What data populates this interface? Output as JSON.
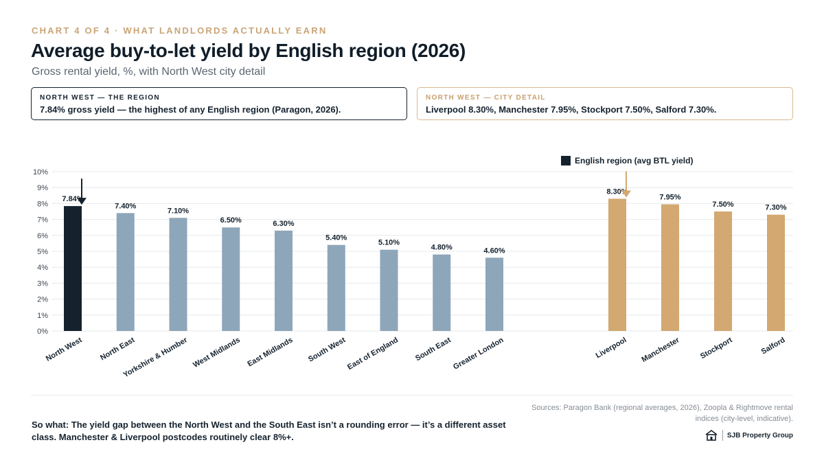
{
  "header": {
    "kicker": "CHART 4 OF 4 · WHAT LANDLORDS ACTUALLY EARN",
    "title": "Average buy-to-let yield by English region (2026)",
    "subtitle": "Gross rental yield, %, with North West city detail"
  },
  "cards": {
    "region": {
      "label": "NORTH WEST — THE REGION",
      "text": "7.84% gross yield — the highest of any English region (Paragon, 2026)."
    },
    "city": {
      "label": "NORTH WEST — CITY DETAIL",
      "text": "Liverpool 8.30%, Manchester 7.95%, Stockport 7.50%, Salford 7.30%."
    }
  },
  "legend": {
    "label": "English region (avg BTL yield)"
  },
  "colors": {
    "highlight": "#15222e",
    "region": "#8ea6ba",
    "city": "#d3a871",
    "grid": "#e6e8eb",
    "axis_text": "#3d4650"
  },
  "chart_data": {
    "type": "bar",
    "y_unit": "%",
    "ylim": [
      0,
      10
    ],
    "yticks": [
      "0%",
      "1%",
      "2%",
      "3%",
      "4%",
      "5%",
      "6%",
      "7%",
      "8%",
      "9%",
      "10%"
    ],
    "grid": true,
    "legend_position": "top-right",
    "categories": [
      "North West",
      "North East",
      "Yorkshire & Humber",
      "West Midlands",
      "East Midlands",
      "South West",
      "East of England",
      "South East",
      "Greater London",
      "Liverpool",
      "Manchester",
      "Stockport",
      "Salford"
    ],
    "values": [
      7.84,
      7.4,
      7.1,
      6.5,
      6.3,
      5.4,
      5.1,
      4.8,
      4.6,
      8.3,
      7.95,
      7.5,
      7.3
    ],
    "value_labels": [
      "7.84%",
      "7.40%",
      "7.10%",
      "6.50%",
      "6.30%",
      "5.40%",
      "5.10%",
      "4.80%",
      "4.60%",
      "8.30%",
      "7.95%",
      "7.50%",
      "7.30%"
    ],
    "groups": [
      "highlight",
      "region",
      "region",
      "region",
      "region",
      "region",
      "region",
      "region",
      "region",
      "city",
      "city",
      "city",
      "city"
    ],
    "arrows": [
      "North West",
      "Liverpool"
    ]
  },
  "footer": {
    "sources": "Sources: Paragon Bank (regional averages, 2026), Zoopla & Rightmove rental indices (city-level, indicative).",
    "so_what": "So what: The yield gap between the North West and the South East isn’t a rounding error — it’s a different asset class. Manchester & Liverpool postcodes routinely clear 8%+.",
    "brand": "SJB Property Group"
  }
}
